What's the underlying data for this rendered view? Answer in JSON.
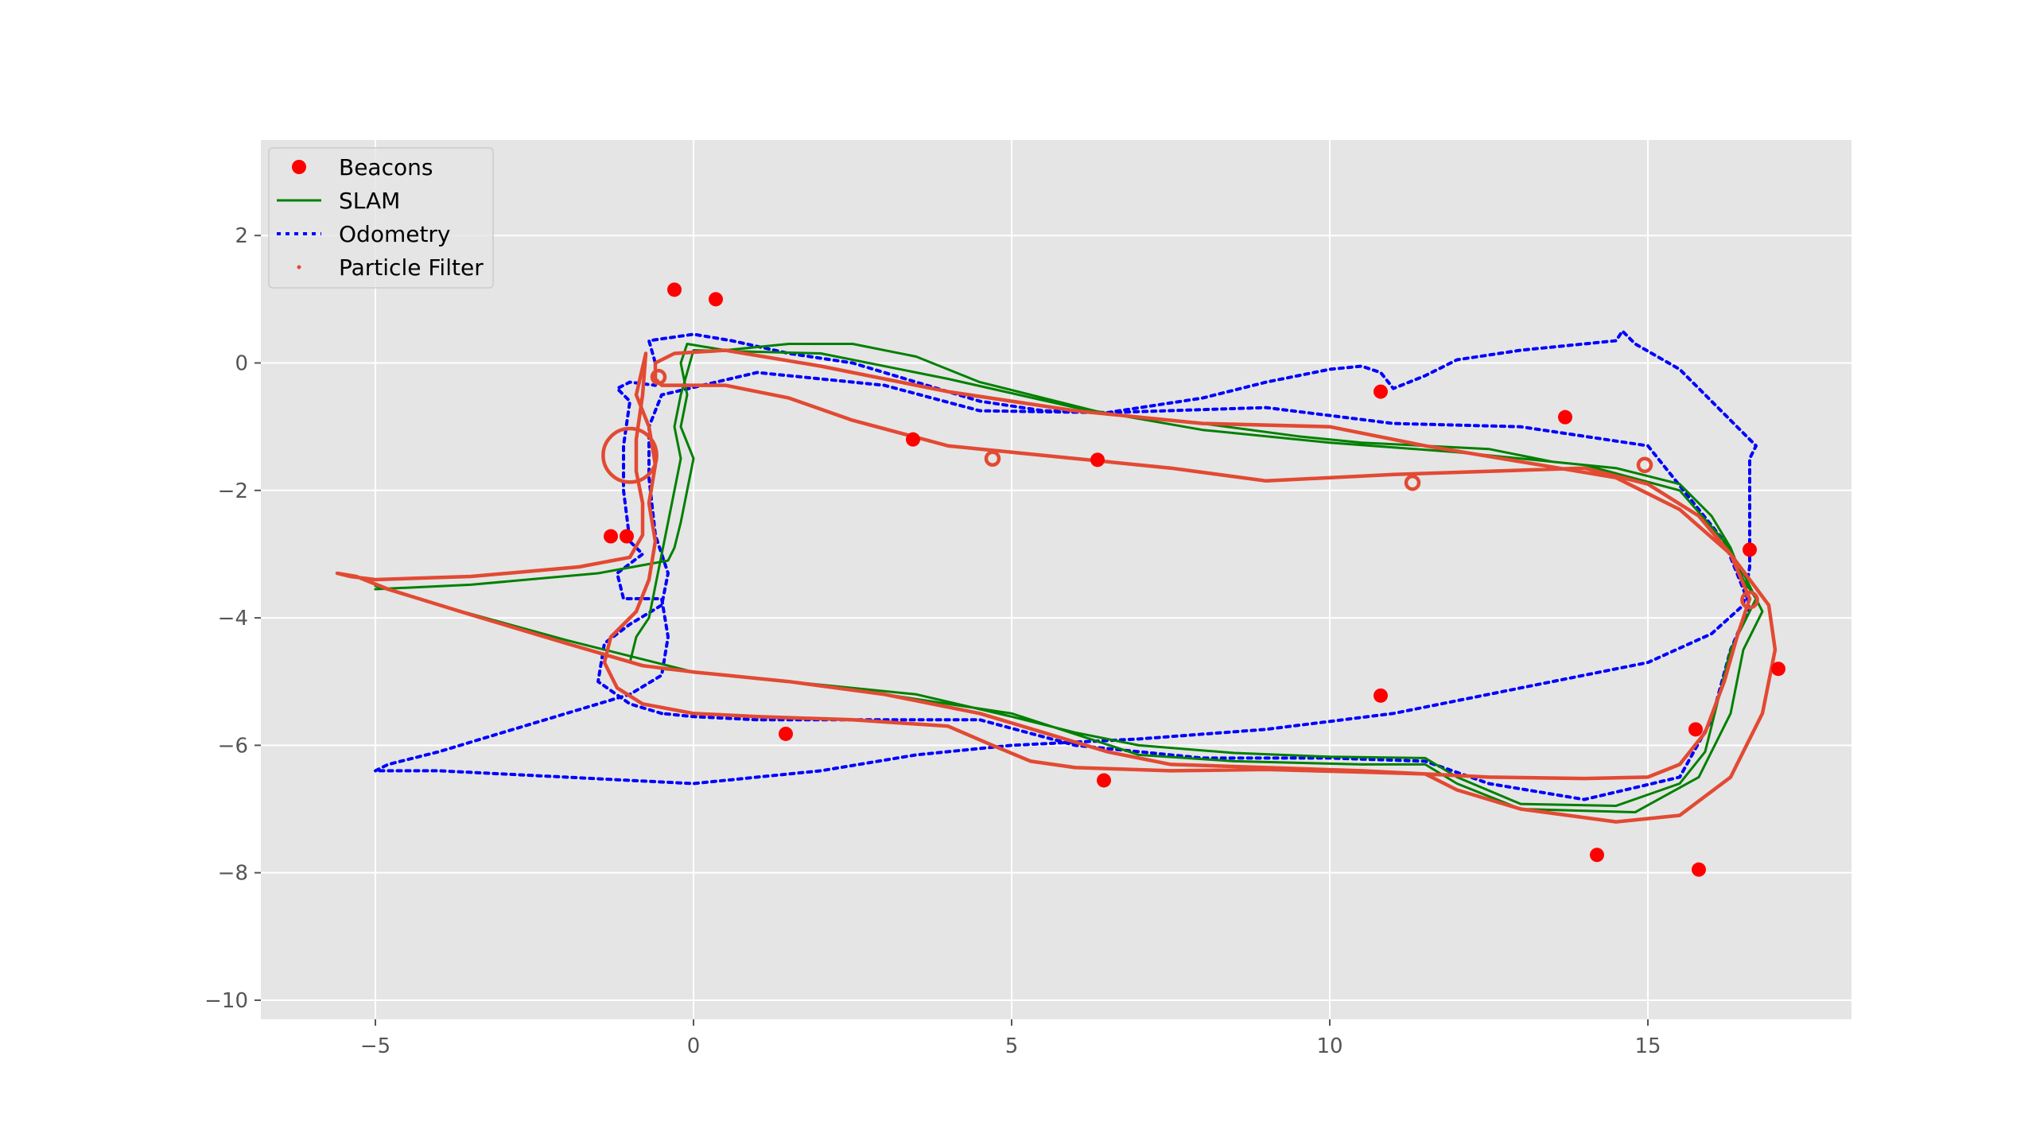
{
  "chart_data": {
    "type": "scatter",
    "title": "",
    "xlabel": "",
    "ylabel": "",
    "xlim": [
      -6.8,
      18.2
    ],
    "ylim": [
      -10.3,
      3.5
    ],
    "grid": true,
    "legend_position": "upper-left",
    "x_ticks": [
      -5,
      0,
      5,
      10,
      15
    ],
    "y_ticks": [
      2,
      0,
      -2,
      -4,
      -6,
      -8,
      -10
    ],
    "colors": {
      "background": "#e5e5e5",
      "grid": "#ffffff",
      "beacons": "#ff0000",
      "slam": "#008000",
      "odometry": "#0000ff",
      "particle_filter": "#e24a33"
    },
    "legend": [
      {
        "key": "beacons",
        "label": "Beacons",
        "marker": "circle"
      },
      {
        "key": "slam",
        "label": "SLAM",
        "marker": "solid-line"
      },
      {
        "key": "odometry",
        "label": "Odometry",
        "marker": "dotted-line"
      },
      {
        "key": "particle_filter",
        "label": "Particle Filter",
        "marker": "small-dot"
      }
    ],
    "series": [
      {
        "key": "beacons",
        "name": "Beacons",
        "points": [
          [
            -0.3,
            1.15
          ],
          [
            0.35,
            1.0
          ],
          [
            10.8,
            -0.45
          ],
          [
            13.7,
            -0.85
          ],
          [
            3.45,
            -1.2
          ],
          [
            6.35,
            -1.52
          ],
          [
            -1.3,
            -2.72
          ],
          [
            -1.05,
            -2.72
          ],
          [
            16.6,
            -2.93
          ],
          [
            17.05,
            -4.8
          ],
          [
            10.8,
            -5.22
          ],
          [
            1.45,
            -5.82
          ],
          [
            15.75,
            -5.75
          ],
          [
            6.45,
            -6.55
          ],
          [
            14.2,
            -7.72
          ],
          [
            15.8,
            -7.95
          ]
        ]
      },
      {
        "key": "slam",
        "name": "SLAM",
        "points": [
          [
            -5.0,
            -3.55
          ],
          [
            -3.5,
            -3.48
          ],
          [
            -1.5,
            -3.3
          ],
          [
            -0.4,
            -3.1
          ],
          [
            -0.3,
            -2.9
          ],
          [
            -0.2,
            -2.5
          ],
          [
            -0.1,
            -2.0
          ],
          [
            0.0,
            -1.5
          ],
          [
            -0.2,
            -1.0
          ],
          [
            -0.1,
            -0.5
          ],
          [
            -0.2,
            0.0
          ],
          [
            -0.1,
            0.3
          ],
          [
            0.5,
            0.2
          ],
          [
            1.5,
            0.3
          ],
          [
            2.5,
            0.3
          ],
          [
            3.5,
            0.1
          ],
          [
            4.5,
            -0.3
          ],
          [
            5.5,
            -0.55
          ],
          [
            6.5,
            -0.8
          ],
          [
            8.0,
            -0.95
          ],
          [
            9.5,
            -1.15
          ],
          [
            10.5,
            -1.25
          ],
          [
            11.5,
            -1.3
          ],
          [
            12.5,
            -1.35
          ],
          [
            13.5,
            -1.55
          ],
          [
            14.5,
            -1.65
          ],
          [
            15.5,
            -1.9
          ],
          [
            16.0,
            -2.4
          ],
          [
            16.3,
            -2.9
          ],
          [
            16.5,
            -3.4
          ],
          [
            16.7,
            -3.7
          ],
          [
            16.3,
            -4.5
          ],
          [
            16.1,
            -5.3
          ],
          [
            15.9,
            -6.1
          ],
          [
            15.5,
            -6.6
          ],
          [
            14.5,
            -6.95
          ],
          [
            13.0,
            -6.92
          ],
          [
            12.0,
            -6.5
          ],
          [
            11.5,
            -6.2
          ],
          [
            10.0,
            -6.18
          ],
          [
            8.5,
            -6.12
          ],
          [
            7.0,
            -6.0
          ],
          [
            6.0,
            -5.8
          ],
          [
            5.0,
            -5.55
          ],
          [
            3.5,
            -5.2
          ],
          [
            1.5,
            -5.0
          ],
          [
            -0.5,
            -4.8
          ],
          [
            -1.0,
            -4.7
          ],
          [
            -0.9,
            -4.3
          ],
          [
            -0.7,
            -4.0
          ],
          [
            -0.6,
            -3.5
          ],
          [
            -0.5,
            -3.0
          ],
          [
            -0.4,
            -2.5
          ],
          [
            -0.3,
            -2.0
          ],
          [
            -0.2,
            -1.5
          ],
          [
            -0.3,
            -1.0
          ],
          [
            -0.2,
            -0.5
          ],
          [
            0.0,
            0.2
          ],
          [
            2.0,
            0.15
          ],
          [
            4.0,
            -0.25
          ],
          [
            6.0,
            -0.7
          ],
          [
            8.0,
            -1.05
          ],
          [
            10.0,
            -1.25
          ],
          [
            12.0,
            -1.4
          ],
          [
            14.0,
            -1.6
          ],
          [
            15.5,
            -2.0
          ],
          [
            16.2,
            -2.8
          ],
          [
            16.5,
            -3.3
          ],
          [
            16.8,
            -3.9
          ],
          [
            16.5,
            -4.5
          ],
          [
            16.3,
            -5.5
          ],
          [
            15.8,
            -6.5
          ],
          [
            14.8,
            -7.05
          ],
          [
            13.0,
            -7.0
          ],
          [
            12.0,
            -6.6
          ],
          [
            11.5,
            -6.3
          ],
          [
            10.5,
            -6.3
          ],
          [
            8.5,
            -6.25
          ],
          [
            7.0,
            -6.15
          ],
          [
            5.0,
            -5.5
          ],
          [
            2.0,
            -5.05
          ],
          [
            0.0,
            -4.85
          ],
          [
            -2.0,
            -4.35
          ],
          [
            -4.0,
            -3.8
          ],
          [
            -5.0,
            -3.5
          ]
        ]
      },
      {
        "key": "odometry",
        "name": "Odometry",
        "points": [
          [
            -5.0,
            -6.4
          ],
          [
            -4.8,
            -6.3
          ],
          [
            -4.0,
            -6.1
          ],
          [
            -3.0,
            -5.8
          ],
          [
            -2.0,
            -5.5
          ],
          [
            -1.0,
            -5.2
          ],
          [
            -0.5,
            -4.9
          ],
          [
            -0.4,
            -4.3
          ],
          [
            -0.5,
            -3.7
          ],
          [
            -1.1,
            -3.7
          ],
          [
            -1.2,
            -3.3
          ],
          [
            -0.8,
            -3.0
          ],
          [
            -1.0,
            -2.8
          ],
          [
            -1.1,
            -2.0
          ],
          [
            -1.1,
            -1.3
          ],
          [
            -1.0,
            -0.6
          ],
          [
            -1.2,
            -0.4
          ],
          [
            -1.0,
            -0.3
          ],
          [
            -0.6,
            -0.35
          ],
          [
            -0.6,
            0.0
          ],
          [
            -0.7,
            0.35
          ],
          [
            0.0,
            0.45
          ],
          [
            0.6,
            0.35
          ],
          [
            1.5,
            0.15
          ],
          [
            2.5,
            0.0
          ],
          [
            3.5,
            -0.3
          ],
          [
            4.5,
            -0.6
          ],
          [
            5.5,
            -0.75
          ],
          [
            6.5,
            -0.78
          ],
          [
            8.0,
            -0.55
          ],
          [
            9.0,
            -0.3
          ],
          [
            10.0,
            -0.1
          ],
          [
            10.5,
            -0.05
          ],
          [
            10.8,
            -0.15
          ],
          [
            11.0,
            -0.4
          ],
          [
            11.5,
            -0.2
          ],
          [
            12.0,
            0.05
          ],
          [
            13.0,
            0.2
          ],
          [
            14.0,
            0.3
          ],
          [
            14.5,
            0.35
          ],
          [
            14.6,
            0.5
          ],
          [
            14.8,
            0.3
          ],
          [
            15.5,
            -0.1
          ],
          [
            16.2,
            -0.8
          ],
          [
            16.7,
            -1.3
          ],
          [
            16.6,
            -1.5
          ],
          [
            16.6,
            -2.5
          ],
          [
            16.6,
            -3.2
          ],
          [
            16.5,
            -3.8
          ],
          [
            16.0,
            -4.25
          ],
          [
            15.0,
            -4.7
          ],
          [
            13.0,
            -5.1
          ],
          [
            11.0,
            -5.5
          ],
          [
            9.0,
            -5.75
          ],
          [
            7.0,
            -5.9
          ],
          [
            5.0,
            -6.0
          ],
          [
            3.5,
            -6.15
          ],
          [
            2.0,
            -6.4
          ],
          [
            1.0,
            -6.5
          ],
          [
            0.0,
            -6.6
          ],
          [
            -1.0,
            -6.55
          ],
          [
            -2.0,
            -6.5
          ],
          [
            -3.0,
            -6.45
          ],
          [
            -4.0,
            -6.4
          ],
          [
            -5.0,
            -6.4
          ]
        ]
      },
      {
        "key": "odometry_loop2",
        "points": [
          [
            -0.5,
            -5.5
          ],
          [
            -1.0,
            -5.35
          ],
          [
            -1.5,
            -5.0
          ],
          [
            -1.4,
            -4.4
          ],
          [
            -1.0,
            -4.1
          ],
          [
            -0.5,
            -3.8
          ],
          [
            -0.4,
            -3.3
          ],
          [
            -0.6,
            -2.7
          ],
          [
            -0.7,
            -1.8
          ],
          [
            -0.7,
            -1.0
          ],
          [
            -0.5,
            -0.5
          ],
          [
            1.0,
            -0.15
          ],
          [
            3.0,
            -0.35
          ],
          [
            4.5,
            -0.75
          ],
          [
            6.5,
            -0.78
          ],
          [
            9.0,
            -0.7
          ],
          [
            11.0,
            -0.95
          ],
          [
            13.0,
            -1.0
          ],
          [
            15.0,
            -1.3
          ],
          [
            16.2,
            -2.8
          ],
          [
            16.6,
            -3.8
          ],
          [
            16.3,
            -4.5
          ],
          [
            16.0,
            -5.6
          ],
          [
            15.5,
            -6.5
          ],
          [
            14.0,
            -6.85
          ],
          [
            12.5,
            -6.6
          ],
          [
            11.5,
            -6.25
          ],
          [
            10.0,
            -6.2
          ],
          [
            8.0,
            -6.2
          ],
          [
            6.0,
            -6.0
          ],
          [
            4.5,
            -5.6
          ],
          [
            3.0,
            -5.6
          ],
          [
            1.0,
            -5.6
          ],
          [
            0.0,
            -5.55
          ],
          [
            -0.5,
            -5.5
          ]
        ]
      },
      {
        "key": "particle_filter",
        "name": "Particle Filter",
        "points": [
          [
            -5.6,
            -3.3
          ],
          [
            -5.4,
            -3.35
          ],
          [
            -5.0,
            -3.4
          ],
          [
            -3.5,
            -3.35
          ],
          [
            -1.8,
            -3.2
          ],
          [
            -1.0,
            -3.05
          ],
          [
            -0.8,
            -2.7
          ],
          [
            -0.8,
            -2.2
          ],
          [
            -0.9,
            -1.7
          ],
          [
            -0.9,
            -1.2
          ],
          [
            -0.8,
            -0.5
          ],
          [
            -0.75,
            0.15
          ],
          [
            -0.9,
            -0.5
          ],
          [
            -0.7,
            -1.0
          ],
          [
            -0.6,
            -1.6
          ],
          [
            -0.7,
            -2.2
          ],
          [
            -0.6,
            -2.8
          ],
          [
            -0.7,
            -3.4
          ],
          [
            -0.9,
            -3.9
          ],
          [
            -1.3,
            -4.3
          ],
          [
            -1.4,
            -4.7
          ],
          [
            -1.2,
            -5.1
          ],
          [
            -0.8,
            -5.35
          ],
          [
            0.0,
            -5.5
          ],
          [
            1.0,
            -5.55
          ],
          [
            2.5,
            -5.6
          ],
          [
            4.0,
            -5.7
          ],
          [
            4.7,
            -6.0
          ],
          [
            5.3,
            -6.25
          ],
          [
            6.0,
            -6.35
          ],
          [
            7.5,
            -6.4
          ],
          [
            9.0,
            -6.38
          ],
          [
            10.5,
            -6.42
          ],
          [
            11.5,
            -6.45
          ],
          [
            12.5,
            -6.5
          ],
          [
            14.0,
            -6.52
          ],
          [
            15.0,
            -6.5
          ],
          [
            15.5,
            -6.3
          ],
          [
            15.9,
            -5.8
          ],
          [
            16.2,
            -5.0
          ],
          [
            16.4,
            -4.3
          ],
          [
            16.6,
            -3.7
          ],
          [
            16.3,
            -3.0
          ],
          [
            15.8,
            -2.4
          ],
          [
            15.0,
            -1.9
          ],
          [
            14.0,
            -1.65
          ],
          [
            12.5,
            -1.7
          ],
          [
            11.0,
            -1.75
          ],
          [
            9.0,
            -1.85
          ],
          [
            7.5,
            -1.65
          ],
          [
            6.0,
            -1.5
          ],
          [
            5.0,
            -1.4
          ],
          [
            4.0,
            -1.3
          ],
          [
            2.5,
            -0.9
          ],
          [
            1.5,
            -0.55
          ],
          [
            0.5,
            -0.35
          ],
          [
            -0.5,
            -0.35
          ],
          [
            -0.6,
            -0.25
          ],
          [
            -0.6,
            0.0
          ],
          [
            -0.3,
            0.15
          ],
          [
            0.5,
            0.2
          ],
          [
            2.0,
            -0.05
          ],
          [
            4.0,
            -0.45
          ],
          [
            6.0,
            -0.75
          ],
          [
            8.0,
            -0.95
          ],
          [
            10.0,
            -1.0
          ],
          [
            11.5,
            -1.3
          ],
          [
            13.0,
            -1.55
          ],
          [
            14.5,
            -1.8
          ],
          [
            15.5,
            -2.3
          ],
          [
            16.3,
            -3.0
          ],
          [
            16.9,
            -3.8
          ],
          [
            17.0,
            -4.5
          ],
          [
            16.8,
            -5.5
          ],
          [
            16.3,
            -6.5
          ],
          [
            15.5,
            -7.1
          ],
          [
            14.5,
            -7.2
          ],
          [
            13.0,
            -7.0
          ],
          [
            12.0,
            -6.7
          ],
          [
            11.5,
            -6.45
          ],
          [
            10.5,
            -6.4
          ],
          [
            9.0,
            -6.35
          ],
          [
            7.5,
            -6.3
          ],
          [
            6.5,
            -6.1
          ],
          [
            5.5,
            -5.8
          ],
          [
            4.5,
            -5.5
          ],
          [
            3.0,
            -5.2
          ],
          [
            1.5,
            -5.0
          ],
          [
            0.0,
            -4.85
          ],
          [
            -0.8,
            -4.75
          ],
          [
            -2.0,
            -4.4
          ],
          [
            -3.5,
            -3.95
          ],
          [
            -4.8,
            -3.55
          ],
          [
            -5.3,
            -3.35
          ],
          [
            -5.6,
            -3.3
          ]
        ]
      }
    ],
    "loops": [
      {
        "key": "particle_filter",
        "cx": -1.0,
        "cy": -1.45,
        "r": 0.42
      },
      {
        "key": "particle_filter",
        "cx": -0.55,
        "cy": -0.22,
        "r": 0.1
      },
      {
        "key": "particle_filter",
        "cx": 4.7,
        "cy": -1.5,
        "r": 0.1
      },
      {
        "key": "particle_filter",
        "cx": 11.3,
        "cy": -1.88,
        "r": 0.1
      },
      {
        "key": "particle_filter",
        "cx": 14.95,
        "cy": -1.6,
        "r": 0.1
      },
      {
        "key": "particle_filter",
        "cx": 16.6,
        "cy": -3.72,
        "r": 0.12
      }
    ]
  }
}
